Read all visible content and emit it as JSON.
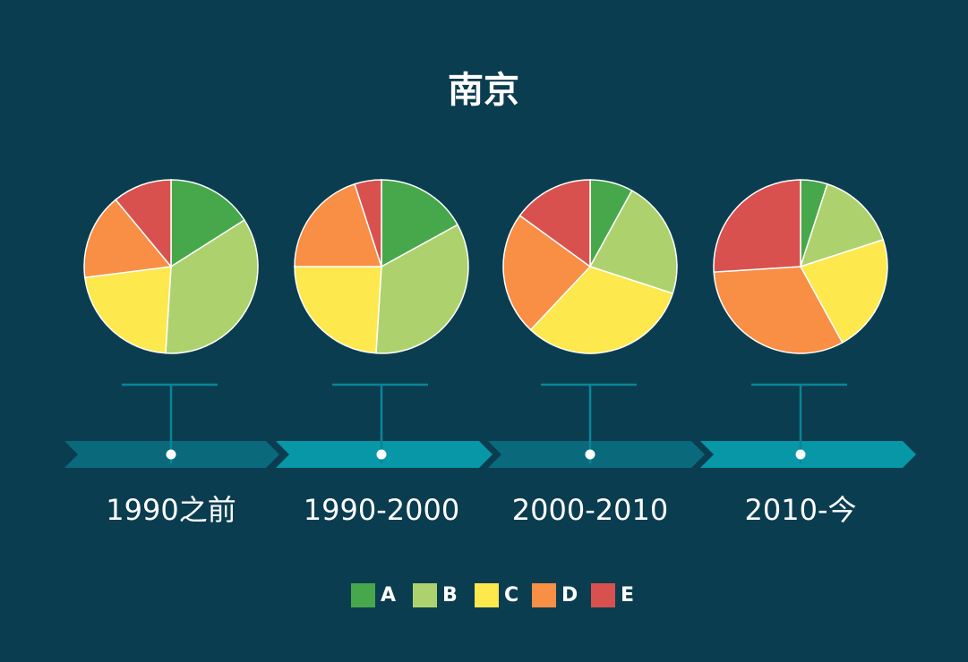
{
  "title": "南京",
  "chart_data": [
    {
      "type": "pie",
      "label": "1990之前",
      "categories": [
        "A",
        "B",
        "C",
        "D",
        "E"
      ],
      "colors": [
        "#47a84b",
        "#add26d",
        "#fde84d",
        "#f98e45",
        "#d8514f"
      ],
      "values": [
        16,
        35,
        22,
        16,
        11
      ]
    },
    {
      "type": "pie",
      "label": "1990-2000",
      "categories": [
        "A",
        "B",
        "C",
        "D",
        "E"
      ],
      "colors": [
        "#47a84b",
        "#add26d",
        "#fde84d",
        "#f98e45",
        "#d8514f"
      ],
      "values": [
        17,
        34,
        24,
        20,
        5
      ]
    },
    {
      "type": "pie",
      "label": "2000-2010",
      "categories": [
        "A",
        "B",
        "C",
        "D",
        "E"
      ],
      "colors": [
        "#47a84b",
        "#add26d",
        "#fde84d",
        "#f98e45",
        "#d8514f"
      ],
      "values": [
        8,
        22,
        32,
        23,
        15
      ]
    },
    {
      "type": "pie",
      "label": "2010-今",
      "categories": [
        "A",
        "B",
        "C",
        "D",
        "E"
      ],
      "colors": [
        "#47a84b",
        "#add26d",
        "#fde84d",
        "#f98e45",
        "#d8514f"
      ],
      "values": [
        5,
        15,
        22,
        32,
        26
      ]
    }
  ]
}
